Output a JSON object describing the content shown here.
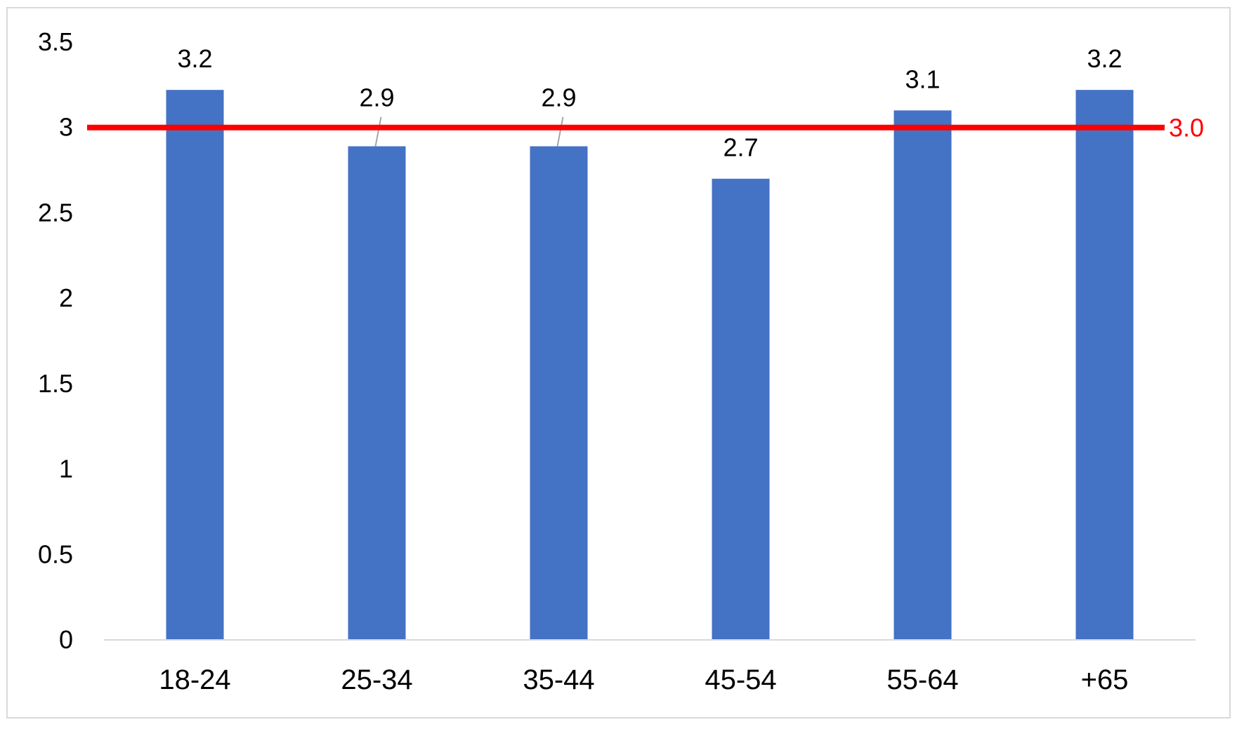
{
  "chart_data": {
    "type": "bar",
    "categories": [
      "18-24",
      "25-34",
      "35-44",
      "45-54",
      "55-64",
      "+65"
    ],
    "values": [
      3.22,
      2.89,
      2.89,
      2.7,
      3.1,
      3.22
    ],
    "data_labels": [
      "3.2",
      "2.9",
      "2.9",
      "2.7",
      "3.1",
      "3.2"
    ],
    "ylim": [
      0,
      3.5
    ],
    "yticks": [
      0,
      0.5,
      1,
      1.5,
      2,
      2.5,
      3,
      3.5
    ],
    "ytick_labels": [
      "0",
      "0.5",
      "1",
      "1.5",
      "2",
      "2.5",
      "3",
      "3.5"
    ],
    "reference_line": {
      "value": 3.0,
      "label": "3.0",
      "color": "#ff0000"
    },
    "bar_color": "#4472c4",
    "title": "",
    "xlabel": "",
    "ylabel": "",
    "grid": false,
    "legend": "none"
  }
}
